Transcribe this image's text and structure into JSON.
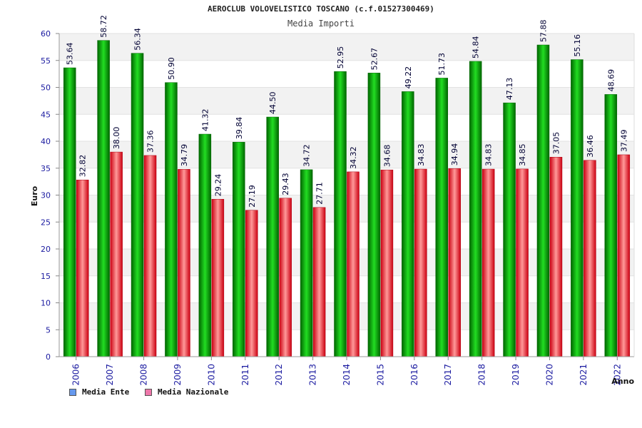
{
  "chart_data": {
    "type": "bar",
    "title": "AEROCLUB VOLOVELISTICO TOSCANO (c.f.01527300469)",
    "subtitle": "Media Importi",
    "xlabel": "Anno",
    "ylabel": "Euro",
    "ylim": [
      0,
      60
    ],
    "yticks": [
      0,
      5,
      10,
      15,
      20,
      25,
      30,
      35,
      40,
      45,
      50,
      55,
      60
    ],
    "categories": [
      "2006",
      "2007",
      "2008",
      "2009",
      "2010",
      "2011",
      "2012",
      "2013",
      "2014",
      "2015",
      "2016",
      "2017",
      "2018",
      "2019",
      "2020",
      "2021",
      "2022"
    ],
    "series": [
      {
        "name": "Media Ente",
        "color": "#00aa00",
        "values": [
          53.64,
          58.72,
          56.34,
          50.9,
          41.32,
          39.84,
          44.5,
          34.72,
          52.95,
          52.67,
          49.22,
          51.73,
          54.84,
          47.13,
          57.88,
          55.16,
          48.69
        ],
        "labels": [
          "53.64",
          "58.72",
          "56.34",
          "50.90",
          "41.32",
          "39.84",
          "44.50",
          "34.72",
          "52.95",
          "52.67",
          "49.22",
          "51.73",
          "54.84",
          "47.13",
          "57.88",
          "55.16",
          "48.69"
        ]
      },
      {
        "name": "Media Nazionale",
        "color": "#dd2233",
        "values": [
          32.82,
          38.0,
          37.36,
          34.79,
          29.24,
          27.19,
          29.43,
          27.71,
          34.32,
          34.68,
          34.83,
          34.94,
          34.83,
          34.85,
          37.05,
          36.46,
          37.49
        ],
        "labels": [
          "32.82",
          "38.00",
          "37.36",
          "34.79",
          "29.24",
          "27.19",
          "29.43",
          "27.71",
          "34.32",
          "34.68",
          "34.83",
          "34.94",
          "34.83",
          "34.85",
          "37.05",
          "36.46",
          "37.49"
        ]
      }
    ],
    "legend": [
      {
        "label": "Media Ente",
        "color": "#6699ee"
      },
      {
        "label": "Media Nazionale",
        "color": "#ee77aa"
      }
    ],
    "legend_position": "bottom-left",
    "grid": true
  }
}
